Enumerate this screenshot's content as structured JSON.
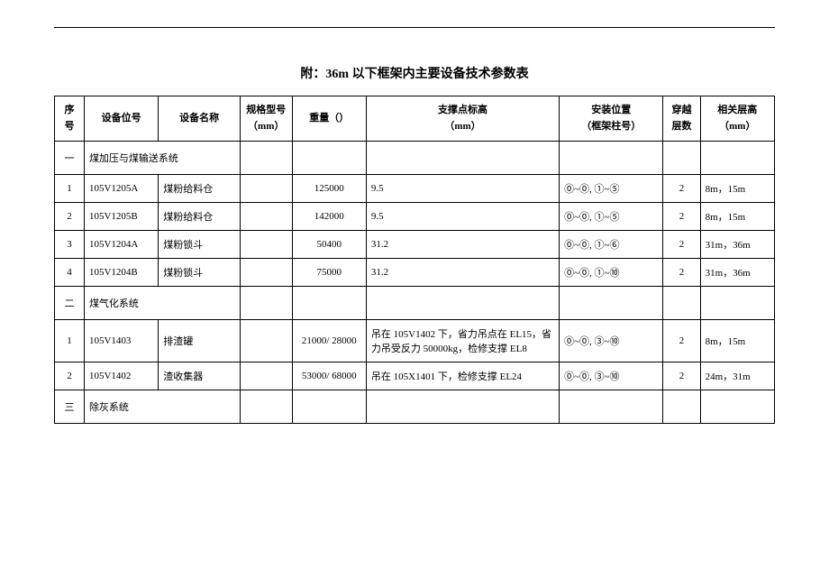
{
  "title": "附：36m 以下框架内主要设备技术参数表",
  "headers": {
    "seq": "序号",
    "equip_no": "设备位号",
    "equip_name": "设备名称",
    "spec": "规格型号\n（mm）",
    "weight": "重量（）",
    "support": "支撑点标高\n（mm）",
    "install": "安装位置\n（框架柱号）",
    "layers": "穿越\n层数",
    "height": "相关层高\n（mm）"
  },
  "rows": [
    {
      "type": "section",
      "seq": "一",
      "name": "煤加压与煤输送系统"
    },
    {
      "type": "data",
      "seq": "1",
      "equip_no": "105V1205A",
      "equip_name": "煤粉给料仓",
      "spec": "",
      "weight": "125000",
      "support": "9.5",
      "install": "⓪~⓪, ①~⑤",
      "layers": "2",
      "height": "8m，15m"
    },
    {
      "type": "data",
      "seq": "2",
      "equip_no": "105V1205B",
      "equip_name": "煤粉给料仓",
      "spec": "",
      "weight": "142000",
      "support": "9.5",
      "install": "⓪~⓪, ①~⑤",
      "layers": "2",
      "height": "8m，15m"
    },
    {
      "type": "data",
      "seq": "3",
      "equip_no": "105V1204A",
      "equip_name": "煤粉锁斗",
      "spec": "",
      "weight": "50400",
      "support": "31.2",
      "install": "⓪~⓪, ①~⑥",
      "layers": "2",
      "height": "31m，36m"
    },
    {
      "type": "data",
      "seq": "4",
      "equip_no": "105V1204B",
      "equip_name": "煤粉锁斗",
      "spec": "",
      "weight": "75000",
      "support": "31.2",
      "install": "⓪~⓪, ①~⑩",
      "layers": "2",
      "height": "31m，36m"
    },
    {
      "type": "section",
      "seq": "二",
      "name": "煤气化系统"
    },
    {
      "type": "data",
      "seq": "1",
      "equip_no": "105V1403",
      "equip_name": "排渣罐",
      "spec": "",
      "weight": "21000/ 28000",
      "support": "吊在 105V1402 下，省力吊点在 EL15，省力吊受反力 50000kg，检修支撑 EL8",
      "install": "⓪~⓪, ③~⑩",
      "layers": "2",
      "height": "8m，15m"
    },
    {
      "type": "data",
      "seq": "2",
      "equip_no": "105V1402",
      "equip_name": "渣收集器",
      "spec": "",
      "weight": "53000/ 68000",
      "support": "吊在 105X1401 下，检修支撑 EL24",
      "install": "⓪~⓪, ③~⑩",
      "layers": "2",
      "height": "24m，31m"
    },
    {
      "type": "section",
      "seq": "三",
      "name": "除灰系统"
    }
  ]
}
